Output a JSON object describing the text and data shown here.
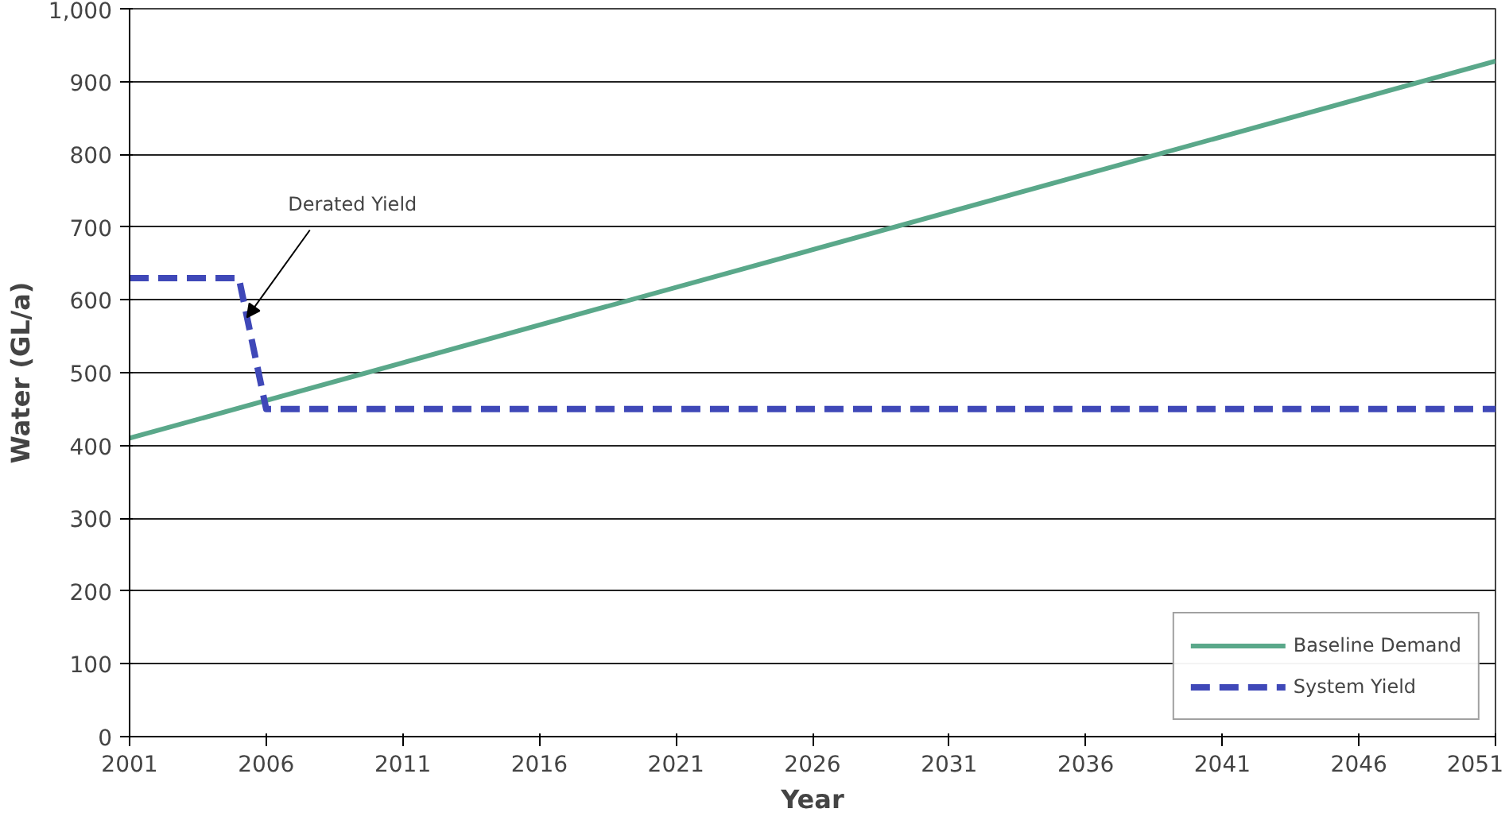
{
  "chart_data": {
    "type": "line",
    "xlabel": "Year",
    "ylabel": "Water (GL/a)",
    "xlim": [
      2001,
      2051
    ],
    "xticks": [
      2001,
      2006,
      2011,
      2016,
      2021,
      2026,
      2031,
      2036,
      2041,
      2046,
      2051
    ],
    "ylim": [
      0,
      1000
    ],
    "yticks": [
      0,
      100,
      200,
      300,
      400,
      500,
      600,
      700,
      800,
      900,
      {
        "value": 1000,
        "label": "1,000"
      }
    ],
    "grid": "y",
    "legend": "bottom right",
    "series": [
      {
        "name": "Baseline Demand",
        "color": "#5aa88a",
        "line_style": "solid",
        "x": [
          2001,
          2051
        ],
        "values": [
          410,
          928
        ]
      },
      {
        "name": "System Yield",
        "color": "#3f48b8",
        "line_style": "dashed",
        "x": [
          2001,
          2005,
          2006,
          2051
        ],
        "values": [
          630,
          630,
          450,
          450
        ]
      }
    ],
    "annotations": [
      {
        "text": "Derated Yield",
        "x": 2005.3,
        "y": 576
      }
    ]
  }
}
